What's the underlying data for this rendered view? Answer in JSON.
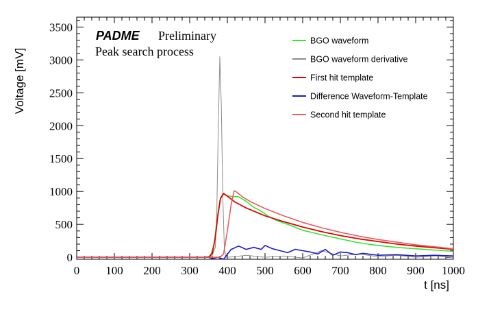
{
  "annotation": {
    "brand": "PADME",
    "tag": "Preliminary",
    "subtitle": "Peak search process"
  },
  "chart_data": {
    "type": "line",
    "title": "",
    "xlabel": "t [ns]",
    "ylabel": "Voltage [mV]",
    "xlim": [
      0,
      1000
    ],
    "ylim": [
      -30,
      3650
    ],
    "xticks": [
      0,
      100,
      200,
      300,
      400,
      500,
      600,
      700,
      800,
      900,
      1000
    ],
    "yticks": [
      0,
      500,
      1000,
      1500,
      2000,
      2500,
      3000,
      3500
    ],
    "grid": false,
    "legend_position": "top-right",
    "series": [
      {
        "name": "BGO waveform",
        "color": "#33e633",
        "x": [
          0,
          340,
          355,
          365,
          372,
          380,
          388,
          398,
          410,
          430,
          450,
          470,
          490,
          510,
          530,
          550,
          570,
          600,
          630,
          660,
          700,
          750,
          800,
          850,
          900,
          950,
          1000
        ],
        "y": [
          0,
          0,
          20,
          200,
          550,
          860,
          960,
          940,
          925,
          920,
          850,
          760,
          700,
          620,
          560,
          520,
          480,
          410,
          370,
          330,
          280,
          220,
          180,
          150,
          130,
          110,
          90
        ]
      },
      {
        "name": "BGO waveform derivative",
        "color": "#8c8c8c",
        "x": [
          0,
          300,
          350,
          360,
          368,
          372,
          376,
          380,
          384,
          388,
          392,
          396,
          400,
          420,
          450,
          500,
          550,
          600,
          650,
          700,
          750,
          800,
          850,
          900,
          950,
          1000
        ],
        "y": [
          0,
          0,
          0,
          30,
          150,
          700,
          2000,
          3050,
          2300,
          900,
          150,
          0,
          0,
          10,
          30,
          0,
          20,
          -10,
          100,
          20,
          50,
          10,
          30,
          0,
          20,
          0
        ]
      },
      {
        "name": "First hit template",
        "color": "#e60000",
        "x": [
          0,
          350,
          360,
          368,
          375,
          382,
          390,
          400,
          420,
          450,
          500,
          550,
          600,
          650,
          700,
          750,
          800,
          850,
          900,
          950,
          1000
        ],
        "y": [
          0,
          0,
          60,
          300,
          650,
          900,
          970,
          930,
          840,
          750,
          630,
          540,
          460,
          390,
          330,
          280,
          240,
          200,
          170,
          145,
          120
        ]
      },
      {
        "name": "Difference Waveform-Template",
        "color": "#1a1acc",
        "x": [
          0,
          350,
          360,
          375,
          390,
          410,
          430,
          450,
          470,
          490,
          500,
          520,
          540,
          560,
          580,
          600,
          620,
          640,
          660,
          680,
          700,
          720,
          740,
          760,
          800,
          850,
          900,
          950,
          1000
        ],
        "y": [
          0,
          0,
          -20,
          0,
          -30,
          120,
          170,
          120,
          150,
          120,
          180,
          130,
          100,
          70,
          120,
          100,
          80,
          50,
          120,
          30,
          80,
          70,
          40,
          60,
          30,
          40,
          20,
          30,
          20
        ]
      },
      {
        "name": "Second hit template",
        "color": "#e65c5c",
        "x": [
          0,
          380,
          390,
          400,
          410,
          418,
          425,
          440,
          460,
          500,
          550,
          600,
          650,
          700,
          750,
          800,
          850,
          900,
          950,
          1000
        ],
        "y": [
          0,
          0,
          50,
          400,
          800,
          1010,
          990,
          920,
          850,
          740,
          630,
          530,
          450,
          380,
          320,
          270,
          230,
          190,
          160,
          130
        ]
      }
    ]
  }
}
